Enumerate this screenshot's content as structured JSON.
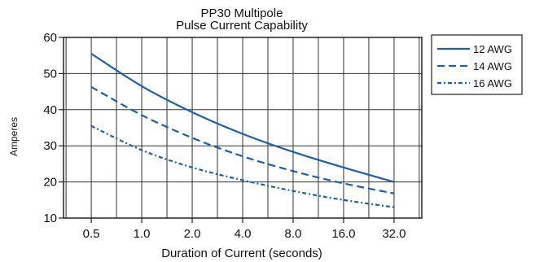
{
  "chart_data": {
    "type": "line",
    "title": "PP30 Multipole",
    "subtitle": "Pulse Current Capability",
    "xlabel": "Duration of Current (seconds)",
    "ylabel": "Amperes",
    "x_scale": "log2",
    "x": [
      0.5,
      1.0,
      2.0,
      4.0,
      8.0,
      16.0,
      32.0
    ],
    "x_tick_labels": [
      "0.5",
      "1.0",
      "2.0",
      "4.0",
      "8.0",
      "16.0",
      "32.0"
    ],
    "ylim": [
      10,
      60
    ],
    "y_ticks": [
      10,
      20,
      30,
      40,
      50,
      60
    ],
    "grid": true,
    "legend_position": "right-top",
    "series": [
      {
        "name": "12 AWG",
        "style": "solid",
        "color": "#1f5fa6",
        "values": [
          55.5,
          46.5,
          39.3,
          33.3,
          28.3,
          24.0,
          20.0
        ]
      },
      {
        "name": "14 AWG",
        "style": "dashed",
        "color": "#1f5fa6",
        "values": [
          46.3,
          38.5,
          32.2,
          27.1,
          23.0,
          19.6,
          16.8
        ]
      },
      {
        "name": "16 AWG",
        "style": "dotted",
        "color": "#1f5fa6",
        "values": [
          35.5,
          28.8,
          24.0,
          20.5,
          17.5,
          15.0,
          13.0
        ]
      }
    ]
  }
}
